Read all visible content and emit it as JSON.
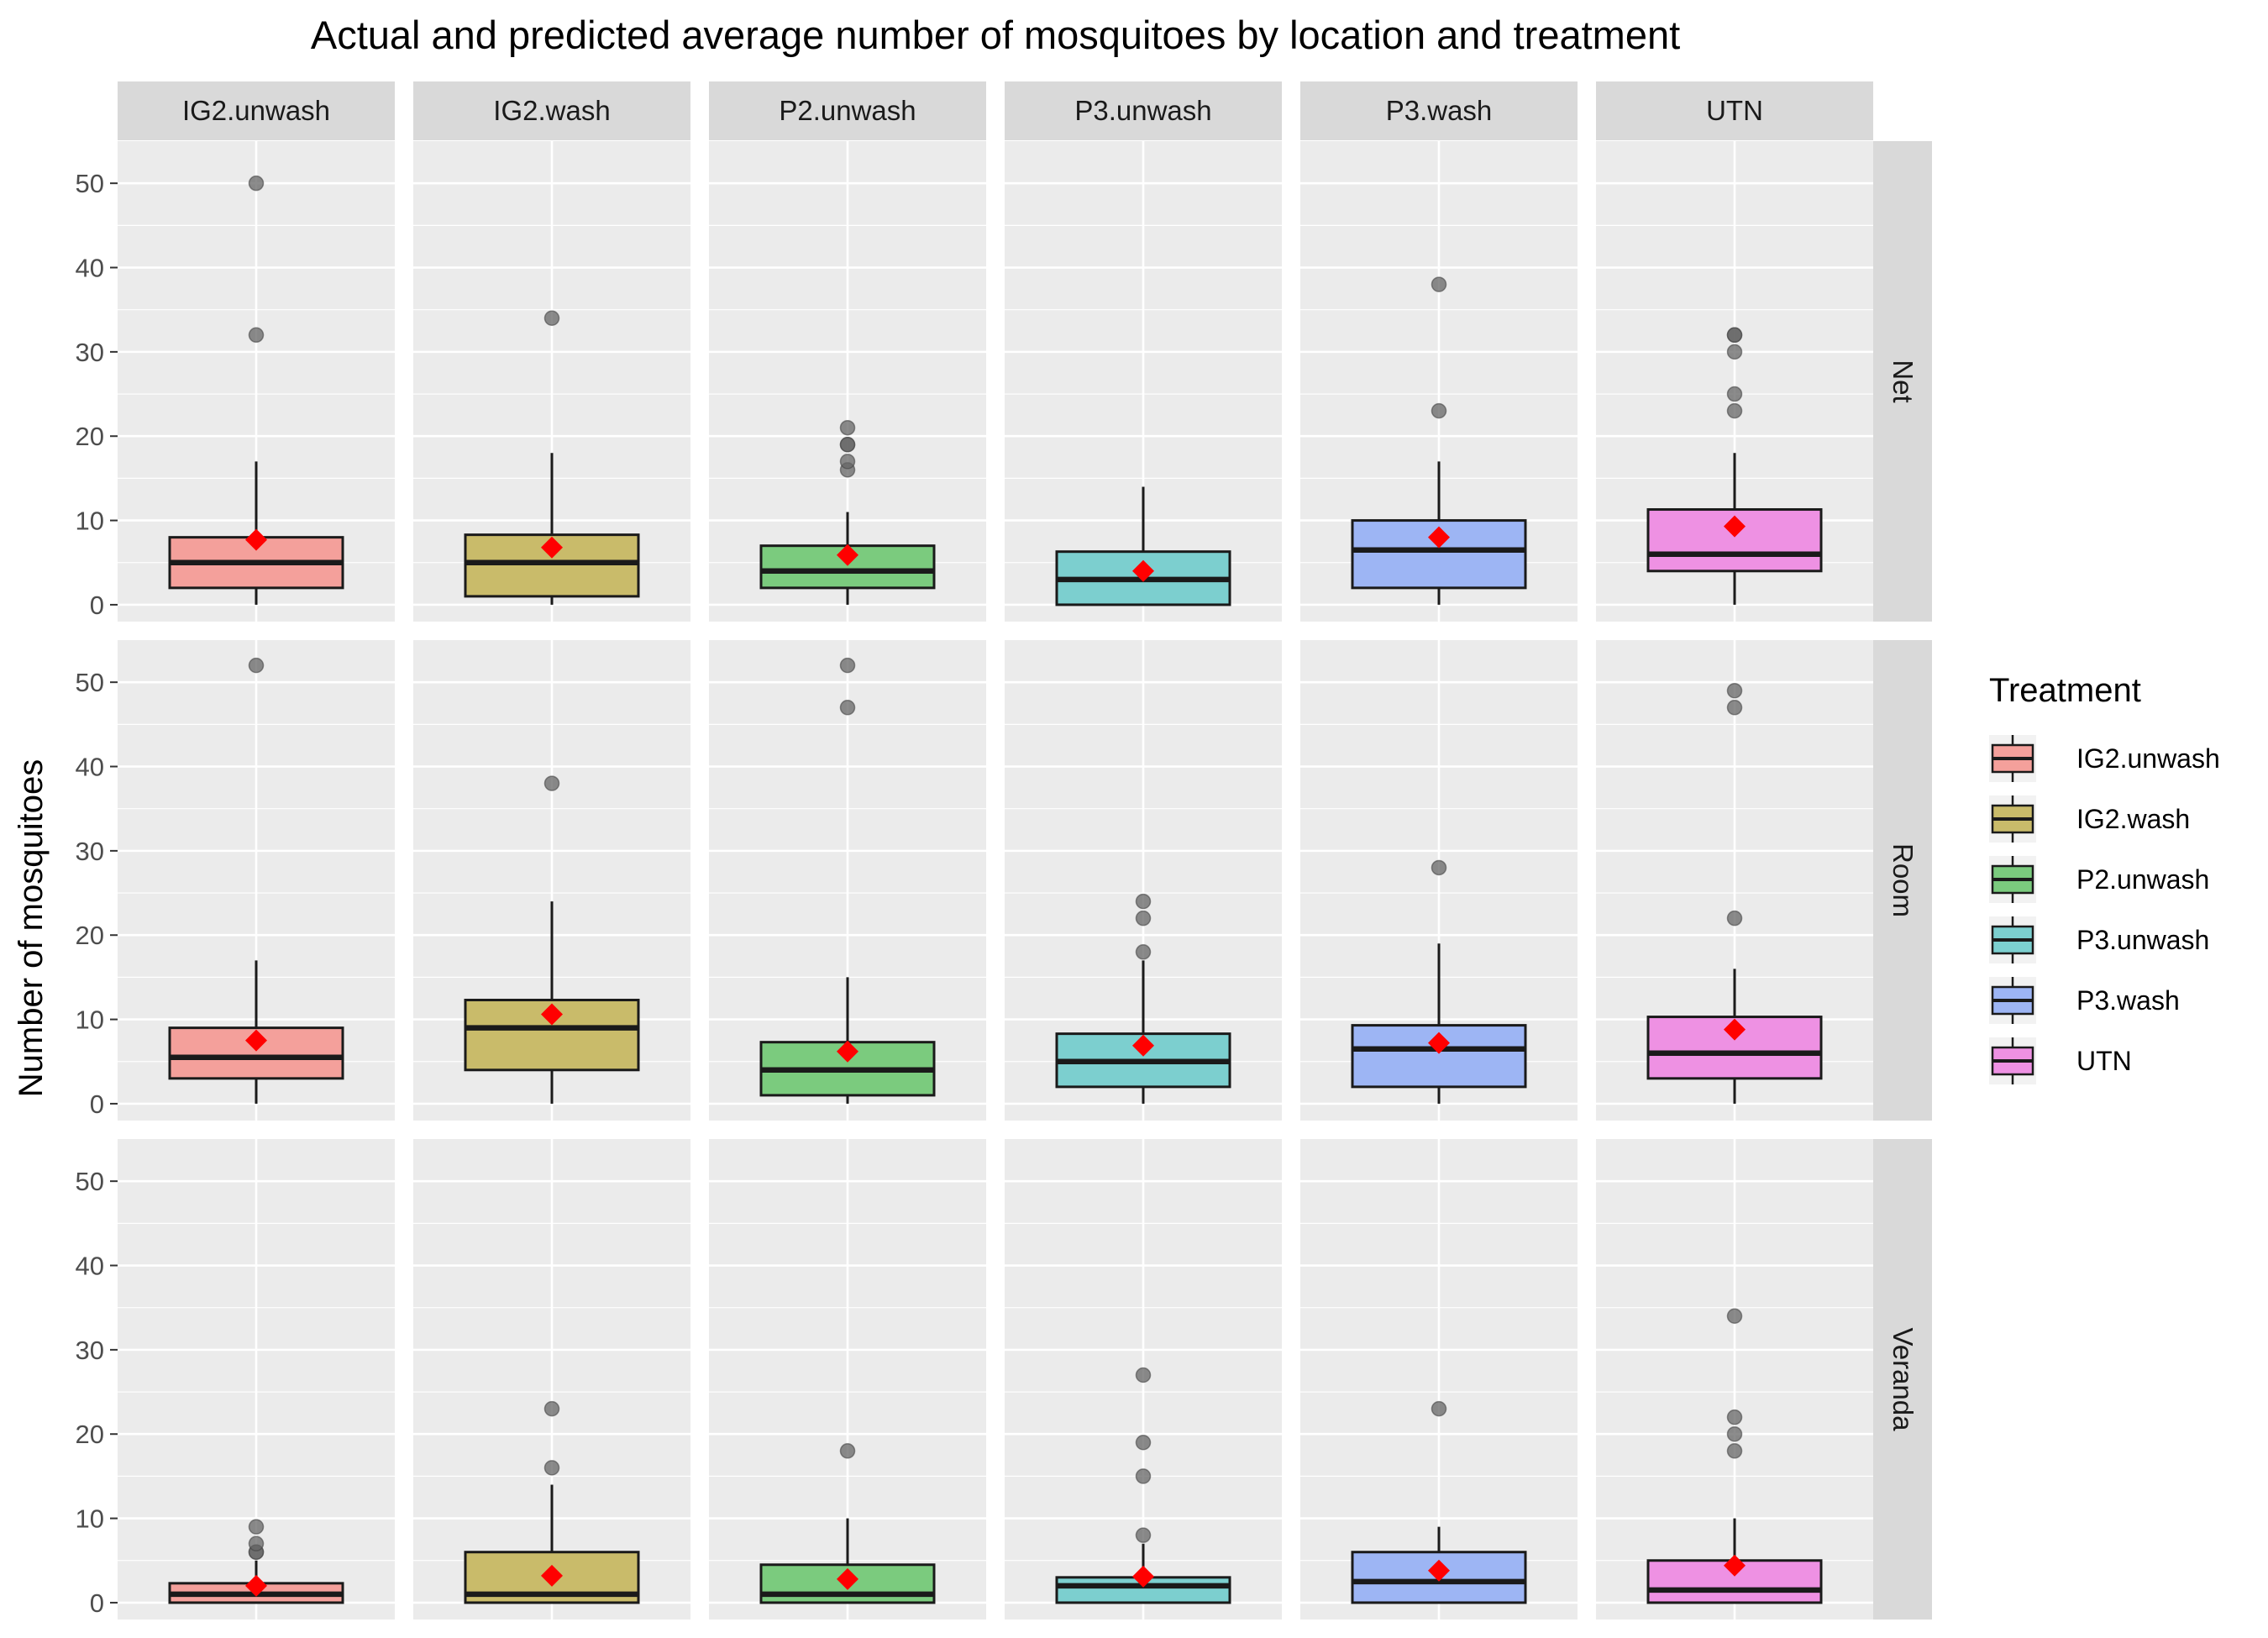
{
  "chart_data": {
    "type": "boxplot",
    "title": "Actual and predicted average number of mosquitoes by location and treatment",
    "xlabel": "",
    "ylabel": "Number of mosquitoes",
    "ylim": [
      -2,
      55
    ],
    "y_ticks": [
      0,
      10,
      20,
      30,
      40,
      50
    ],
    "grid": true,
    "columns": [
      "IG2.unwash",
      "IG2.wash",
      "P2.unwash",
      "P3.unwash",
      "P3.wash",
      "UTN"
    ],
    "rows": [
      "Net",
      "Room",
      "Veranda"
    ],
    "colors": {
      "IG2.unwash": "#F4A09B",
      "IG2.wash": "#C9BB6A",
      "P2.unwash": "#7BCB7E",
      "P3.unwash": "#7CCFCF",
      "P3.wash": "#9DB5F4",
      "UTN": "#EE91E3",
      "mean_marker": "#FF0000",
      "outlier": "#666666"
    },
    "legend": {
      "title": "Treatment",
      "position": "right",
      "entries": [
        "IG2.unwash",
        "IG2.wash",
        "P2.unwash",
        "P3.unwash",
        "P3.wash",
        "UTN"
      ]
    },
    "panels": [
      {
        "row": "Net",
        "col": "IG2.unwash",
        "min": 0,
        "q1": 2,
        "median": 5,
        "q3": 8,
        "max": 17,
        "mean": 7.7,
        "outliers": [
          32,
          50
        ]
      },
      {
        "row": "Net",
        "col": "IG2.wash",
        "min": 0,
        "q1": 1,
        "median": 5,
        "q3": 8.3,
        "max": 18,
        "mean": 6.8,
        "outliers": [
          34
        ]
      },
      {
        "row": "Net",
        "col": "P2.unwash",
        "min": 0,
        "q1": 2,
        "median": 4,
        "q3": 7,
        "max": 11,
        "mean": 5.9,
        "outliers": [
          16,
          17,
          19,
          19,
          21
        ]
      },
      {
        "row": "Net",
        "col": "P3.unwash",
        "min": 0,
        "q1": 0,
        "median": 3,
        "q3": 6.3,
        "max": 14,
        "mean": 4.0,
        "outliers": []
      },
      {
        "row": "Net",
        "col": "P3.wash",
        "min": 0,
        "q1": 2,
        "median": 6.5,
        "q3": 10,
        "max": 17,
        "mean": 8.0,
        "outliers": [
          23,
          38
        ]
      },
      {
        "row": "Net",
        "col": "UTN",
        "min": 0,
        "q1": 4,
        "median": 6,
        "q3": 11.3,
        "max": 18,
        "mean": 9.3,
        "outliers": [
          23,
          25,
          30,
          32,
          32
        ]
      },
      {
        "row": "Room",
        "col": "IG2.unwash",
        "min": 0,
        "q1": 3,
        "median": 5.5,
        "q3": 9,
        "max": 17,
        "mean": 7.5,
        "outliers": [
          52
        ]
      },
      {
        "row": "Room",
        "col": "IG2.wash",
        "min": 0,
        "q1": 4,
        "median": 9,
        "q3": 12.3,
        "max": 24,
        "mean": 10.6,
        "outliers": [
          38
        ]
      },
      {
        "row": "Room",
        "col": "P2.unwash",
        "min": 0,
        "q1": 1,
        "median": 4,
        "q3": 7.3,
        "max": 15,
        "mean": 6.2,
        "outliers": [
          47,
          52
        ]
      },
      {
        "row": "Room",
        "col": "P3.unwash",
        "min": 0,
        "q1": 2,
        "median": 5,
        "q3": 8.3,
        "max": 17,
        "mean": 6.9,
        "outliers": [
          18,
          22,
          24
        ]
      },
      {
        "row": "Room",
        "col": "P3.wash",
        "min": 0,
        "q1": 2,
        "median": 6.5,
        "q3": 9.3,
        "max": 19,
        "mean": 7.2,
        "outliers": [
          28
        ]
      },
      {
        "row": "Room",
        "col": "UTN",
        "min": 0,
        "q1": 3,
        "median": 6,
        "q3": 10.3,
        "max": 16,
        "mean": 8.8,
        "outliers": [
          22,
          47,
          49
        ]
      },
      {
        "row": "Veranda",
        "col": "IG2.unwash",
        "min": 0,
        "q1": 0,
        "median": 1,
        "q3": 2.3,
        "max": 5,
        "mean": 2.0,
        "outliers": [
          6,
          6,
          7,
          9
        ]
      },
      {
        "row": "Veranda",
        "col": "IG2.wash",
        "min": 0,
        "q1": 0,
        "median": 1,
        "q3": 6,
        "max": 14,
        "mean": 3.2,
        "outliers": [
          16,
          23
        ]
      },
      {
        "row": "Veranda",
        "col": "P2.unwash",
        "min": 0,
        "q1": 0,
        "median": 1,
        "q3": 4.5,
        "max": 10,
        "mean": 2.8,
        "outliers": [
          18
        ]
      },
      {
        "row": "Veranda",
        "col": "P3.unwash",
        "min": 0,
        "q1": 0,
        "median": 2,
        "q3": 3,
        "max": 7,
        "mean": 3.1,
        "outliers": [
          8,
          15,
          19,
          27
        ]
      },
      {
        "row": "Veranda",
        "col": "P3.wash",
        "min": 0,
        "q1": 0,
        "median": 2.5,
        "q3": 6,
        "max": 9,
        "mean": 3.8,
        "outliers": [
          23
        ]
      },
      {
        "row": "Veranda",
        "col": "UTN",
        "min": 0,
        "q1": 0,
        "median": 1.5,
        "q3": 5,
        "max": 10,
        "mean": 4.4,
        "outliers": [
          18,
          20,
          22,
          34
        ]
      }
    ]
  }
}
